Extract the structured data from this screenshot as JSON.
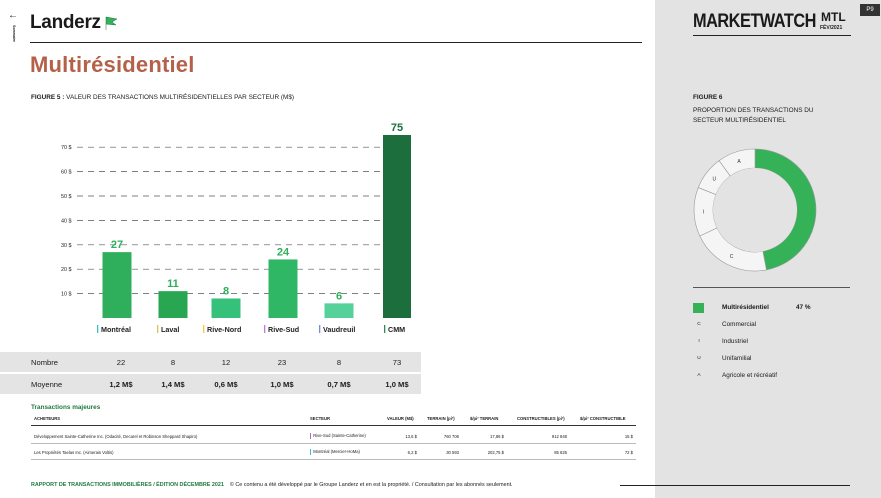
{
  "header": {
    "back_arrow": "←",
    "sommaire": "Sommaire",
    "logo": "Landerz",
    "title": "Multirésidentiel"
  },
  "figure5": {
    "label_bold": "FIGURE 5 :",
    "label_text": " VALEUR DES TRANSACTIONS MULTIRÉSIDENTIELLES PAR SECTEUR (M$)"
  },
  "chart_data": {
    "type": "bar",
    "title": "VALEUR DES TRANSACTIONS MULTIRÉSIDENTIELLES PAR SECTEUR (M$)",
    "categories": [
      "Montréal",
      "Laval",
      "Rive-Nord",
      "Rive-Sud",
      "Vaudreuil",
      "CMM"
    ],
    "values": [
      27,
      11,
      8,
      24,
      6,
      75
    ],
    "data_labels": [
      "27",
      "11",
      "8",
      "24",
      "6",
      "75"
    ],
    "colors": [
      "#2fae5c",
      "#29a651",
      "#35c17a",
      "#2fb766",
      "#56d199",
      "#1c6e3c"
    ],
    "category_marker_colors": [
      "#3fc1c0",
      "#d9c05a",
      "#f2c744",
      "#c37ad9",
      "#6f8fd6",
      "#2e8b57"
    ],
    "yticks": [
      "10 $",
      "20 $",
      "30 $",
      "40 $",
      "50 $",
      "60 $",
      "70 $"
    ],
    "ylim": [
      0,
      75
    ],
    "grid": true
  },
  "stats": {
    "nombre_label": "Nombre",
    "nombre": [
      "22",
      "8",
      "12",
      "23",
      "8",
      "73"
    ],
    "moyenne_label": "Moyenne",
    "moyenne": [
      "1,2 M$",
      "1,4 M$",
      "0,6 M$",
      "1,0 M$",
      "0,7 M$",
      "1,0 M$"
    ]
  },
  "transactions": {
    "title": "Transactions majeures",
    "headers": [
      "ACHETEURS",
      "SECTEUR",
      "VALEUR (M$)",
      "TERRAIN (pi²)",
      "$/pi² TERRAIN",
      "CONSTRUCTIBLES (pi²)",
      "$/pi² CONSTRUCTIBLE"
    ],
    "rows": [
      [
        "Développement Sainte-Catherine Inc. (Odacité, Decarel et Robinson Sheppard Shapiro)",
        "Rive-Sud (Sainte-Catherine)",
        "13,6 $",
        "760 706",
        "17,86 $",
        "912 848",
        "15 $"
      ],
      [
        "Les Propriétés Taelas Inc. (Aimerais Voltis)",
        "Montréal (Mercier-HoMa)",
        "6,2 $",
        "30 593",
        "202,75 $",
        "85 625",
        "72 $"
      ]
    ],
    "sector_colors": [
      "#b36ab8",
      "#3fc1c0"
    ]
  },
  "footer": {
    "bold": "RAPPORT DE TRANSACTIONS IMMOBILIÈRES  /  ÉDITION DÉCEMBRE 2021",
    "text": "© Ce contenu a été développé par le Groupe Landerz et en est la propriété.  /  Consultation par les abonnés seulement."
  },
  "sidebar": {
    "marketwatch": "MARKETWATCH",
    "city": "MTL",
    "date": "FÉV/2021",
    "page": "P9",
    "figure_label": "FIGURE 6",
    "figure_caption": "PROPORTION DES TRANSACTIONS DU SECTEUR MULTIRÉSIDENTIEL",
    "donut": {
      "slices": [
        {
          "key": "M",
          "value": 47,
          "color": "#35b257"
        },
        {
          "key": "C",
          "value": 21,
          "color": "#f5f5f5"
        },
        {
          "key": "I",
          "value": 13,
          "color": "#f5f5f5"
        },
        {
          "key": "U",
          "value": 9,
          "color": "#f5f5f5"
        },
        {
          "key": "A",
          "value": 10,
          "color": "#f5f5f5"
        }
      ],
      "letters": [
        "A",
        "U",
        "I",
        "C"
      ]
    },
    "legend": [
      {
        "key": "",
        "label": "Multirésidentiel",
        "pct": "47 %"
      },
      {
        "key": "C",
        "label": "Commercial",
        "pct": ""
      },
      {
        "key": "I",
        "label": "Industriel",
        "pct": ""
      },
      {
        "key": "U",
        "label": "Unifamilial",
        "pct": ""
      },
      {
        "key": "A",
        "label": "Agricole et récréatif",
        "pct": ""
      }
    ]
  }
}
